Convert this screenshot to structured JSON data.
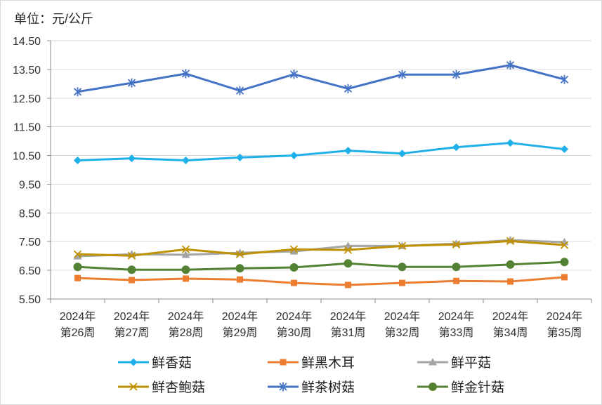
{
  "chart_data": {
    "type": "line",
    "title": "单位：元/公斤",
    "categories": [
      [
        "2024年",
        "第26周"
      ],
      [
        "2024年",
        "第27周"
      ],
      [
        "2024年",
        "第28周"
      ],
      [
        "2024年",
        "第29周"
      ],
      [
        "2024年",
        "第30周"
      ],
      [
        "2024年",
        "第31周"
      ],
      [
        "2024年",
        "第32周"
      ],
      [
        "2024年",
        "第33周"
      ],
      [
        "2024年",
        "第34周"
      ],
      [
        "2024年",
        "第35周"
      ]
    ],
    "ylim": [
      5.5,
      14.5
    ],
    "y_ticks": [
      "5.50",
      "6.50",
      "7.50",
      "8.50",
      "9.50",
      "10.50",
      "11.50",
      "12.50",
      "13.50",
      "14.50"
    ],
    "grid": true,
    "legend": "bottom",
    "series": [
      {
        "name": "鲜香菇",
        "color": "#1FB0EA",
        "marker": "diamond",
        "values": [
          10.33,
          10.4,
          10.33,
          10.43,
          10.5,
          10.67,
          10.57,
          10.79,
          10.94,
          10.72
        ]
      },
      {
        "name": "鲜黑木耳",
        "color": "#ED7D31",
        "marker": "square",
        "values": [
          6.23,
          6.16,
          6.21,
          6.18,
          6.06,
          5.99,
          6.06,
          6.13,
          6.11,
          6.26
        ]
      },
      {
        "name": "鲜平菇",
        "color": "#A5A5A5",
        "marker": "triangle",
        "values": [
          6.99,
          7.06,
          7.04,
          7.11,
          7.16,
          7.35,
          7.35,
          7.43,
          7.55,
          7.48
        ]
      },
      {
        "name": "鲜杏鲍菇",
        "color": "#BF9000",
        "marker": "x",
        "values": [
          7.06,
          7.01,
          7.23,
          7.06,
          7.23,
          7.21,
          7.35,
          7.4,
          7.52,
          7.38
        ]
      },
      {
        "name": "鲜茶树菇",
        "color": "#4472C4",
        "marker": "star",
        "values": [
          12.72,
          13.03,
          13.35,
          12.76,
          13.33,
          12.83,
          13.32,
          13.32,
          13.65,
          13.15
        ]
      },
      {
        "name": "鲜金针菇",
        "color": "#548235",
        "marker": "circle",
        "values": [
          6.62,
          6.52,
          6.52,
          6.57,
          6.6,
          6.74,
          6.62,
          6.62,
          6.7,
          6.79
        ]
      }
    ]
  }
}
